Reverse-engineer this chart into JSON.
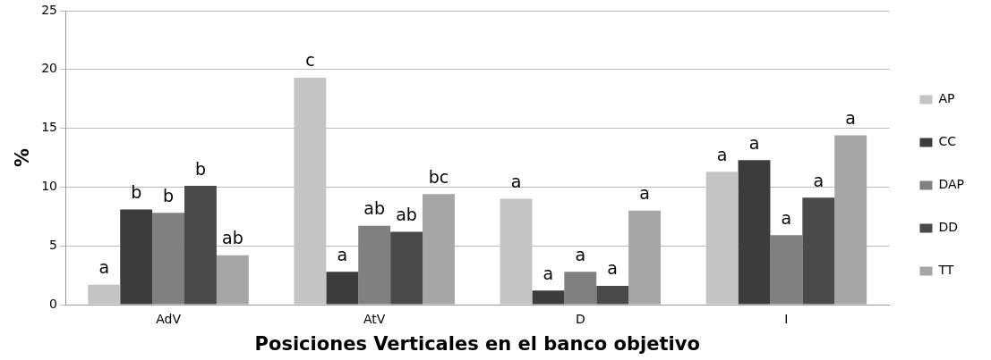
{
  "chart_data": {
    "type": "bar",
    "xlabel": "Posiciones Verticales en el banco objetivo",
    "ylabel": "%",
    "categories": [
      "AdV",
      "AtV",
      "D",
      "I"
    ],
    "series": [
      {
        "name": "AP",
        "color": "#c4c4c4",
        "values": [
          1.7,
          19.3,
          9.0,
          11.3
        ],
        "value_labels": [
          "a",
          "c",
          "a",
          "a"
        ]
      },
      {
        "name": "CC",
        "color": "#3c3c3c",
        "values": [
          8.1,
          2.8,
          1.2,
          12.3
        ],
        "value_labels": [
          "b",
          "a",
          "a",
          "a"
        ]
      },
      {
        "name": "DAP",
        "color": "#808080",
        "values": [
          7.8,
          6.7,
          2.8,
          5.9
        ],
        "value_labels": [
          "b",
          "ab",
          "a",
          "a"
        ]
      },
      {
        "name": "DD",
        "color": "#4a4a4a",
        "values": [
          10.1,
          6.2,
          1.6,
          9.1
        ],
        "value_labels": [
          "b",
          "ab",
          "a",
          "a"
        ]
      },
      {
        "name": "TT",
        "color": "#a6a6a6",
        "values": [
          4.2,
          9.4,
          8.0,
          14.4
        ],
        "value_labels": [
          "ab",
          "bc",
          "a",
          "a"
        ]
      }
    ],
    "ylim": [
      0,
      25
    ],
    "yticks": [
      0,
      5,
      10,
      15,
      20,
      25
    ],
    "grid": "y",
    "legend": "right"
  }
}
